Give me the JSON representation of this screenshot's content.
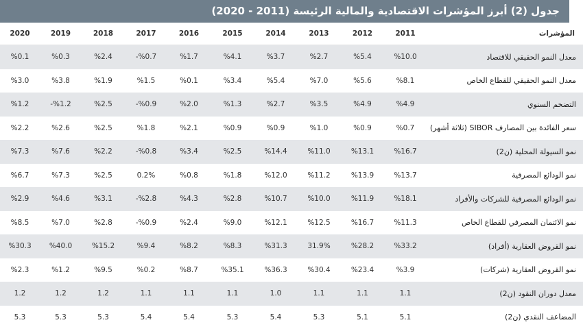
{
  "title": "جدول (2) أبرز المؤشرات الاقتصادية والمالية الرئيسة (2011 - 2020)",
  "colors": {
    "header_bg": "#6f7f8c",
    "stripe": "#e4e6e9",
    "text": "#333333"
  },
  "table": {
    "header": [
      "2020",
      "2019",
      "2018",
      "2017",
      "2016",
      "2015",
      "2014",
      "2013",
      "2012",
      "2011",
      "المؤشرات"
    ],
    "rows": [
      {
        "cells": [
          "%0.1",
          "%0.3",
          "%2.4",
          "-%0.7",
          "%1.7",
          "%4.1",
          "%3.7",
          "%2.7",
          "%5.4",
          "%10.0"
        ],
        "label": "معدل النمو الحقيقي للاقتصاد"
      },
      {
        "cells": [
          "%3.0",
          "%3.8",
          "%1.9",
          "%1.5",
          "%0.1",
          "%3.4",
          "%5.4",
          "%7.0",
          "%5.6",
          "%8.1"
        ],
        "label": "معدل النمو الحقيقي للقطاع الخاص"
      },
      {
        "cells": [
          "%1.2",
          "-%1.2",
          "%2.5",
          "-%0.9",
          "%2.0",
          "%1.3",
          "%2.7",
          "%3.5",
          "%4.9",
          "%4.9"
        ],
        "label": "التضخم السنوي"
      },
      {
        "cells": [
          "%2.2",
          "%2.6",
          "%2.5",
          "%1.8",
          "%2.1",
          "%0.9",
          "%0.9",
          "%1.0",
          "%0.9",
          "%0.7"
        ],
        "label": "سعر الفائدة بين المصارف SIBOR (ثلاثة أشهر)"
      },
      {
        "cells": [
          "%7.3",
          "%7.6",
          "%2.2",
          "-%0.8",
          "%3.4",
          "%2.5",
          "%14.4",
          "%11.0",
          "%13.1",
          "%16.7"
        ],
        "label": "نمو السيولة المحلية (ن2)"
      },
      {
        "cells": [
          "%6.7",
          "%7.3",
          "%2.5",
          "0.2%",
          "%0.8",
          "%1.8",
          "%12.0",
          "%11.2",
          "%13.9",
          "%13.7"
        ],
        "label": "نمو الودائع المصرفية"
      },
      {
        "cells": [
          "%2.9",
          "%4.6",
          "%3.1",
          "-%2.8",
          "%4.3",
          "%2.8",
          "%10.7",
          "%10.0",
          "%11.9",
          "%18.1"
        ],
        "label": "نمو الودائع المصرفية للشركات والأفراد"
      },
      {
        "cells": [
          "%8.5",
          "%7.0",
          "%2.8",
          "-%0.9",
          "%2.4",
          "%9.0",
          "%12.1",
          "%12.5",
          "%16.7",
          "%11.3"
        ],
        "label": "نمو الائتمان المصرفي للقطاع الخاص"
      },
      {
        "cells": [
          "%30.3",
          "%40.0",
          "%15.2",
          "%9.4",
          "%8.2",
          "%8.3",
          "%31.3",
          "31.9%",
          "%28.2",
          "%33.2"
        ],
        "label": "نمو القروض العقارية (أفراد)"
      },
      {
        "cells": [
          "%2.3",
          "%1.2",
          "%9.5",
          "%0.2",
          "%8.7",
          "%35.1",
          "%36.3",
          "%30.4",
          "%23.4",
          "%3.9"
        ],
        "label": "نمو القروض العقارية (شركات)"
      },
      {
        "cells": [
          "1.2",
          "1.2",
          "1.2",
          "1.1",
          "1.1",
          "1.1",
          "1.0",
          "1.1",
          "1.1",
          "1.1"
        ],
        "label": "معدل دوران النقود (ن2)"
      },
      {
        "cells": [
          "5.3",
          "5.3",
          "5.3",
          "5.4",
          "5.4",
          "5.3",
          "5.4",
          "5.3",
          "5.1",
          "5.1"
        ],
        "label": "المضاعف النقدي (ن2)"
      }
    ]
  }
}
